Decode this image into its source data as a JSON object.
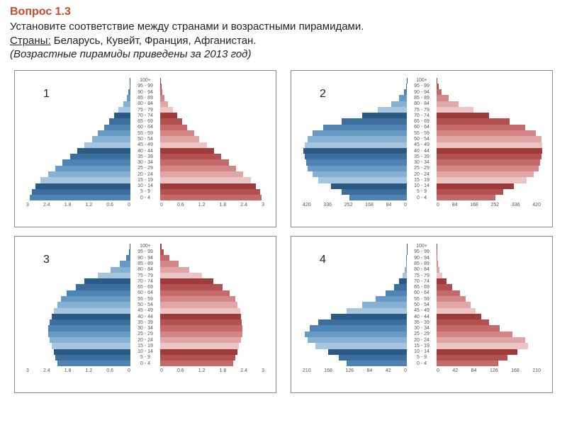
{
  "header": {
    "title": "Вопрос  1.3",
    "line1": "Установите соответствие между странами и возрастными пирамидами.",
    "countries_label": "Страны:",
    "countries": " Беларусь, Кувейт, Франция, Афганистан.",
    "note": "(Возрастные пирамиды приведены за 2013 год)"
  },
  "style": {
    "male_colors": [
      "#2b5a84",
      "#3c6e9e",
      "#4f83b3",
      "#689ac4",
      "#86b1d3",
      "#a6c6e0"
    ],
    "female_colors": [
      "#9e3b3b",
      "#b35050",
      "#c46a6a",
      "#d48686",
      "#e0a6a6",
      "#ecc4c4"
    ],
    "border_color": "#888888",
    "age_labels": [
      "100+",
      "95 - 99",
      "90 - 94",
      "85 - 89",
      "80 - 84",
      "75 - 79",
      "70 - 74",
      "65 - 69",
      "60 - 64",
      "55 - 59",
      "50 - 54",
      "45 - 49",
      "40 - 44",
      "35 - 39",
      "30 - 34",
      "25 - 29",
      "20 - 24",
      "15 - 19",
      "10 - 14",
      "5 - 9",
      "0 - 4"
    ],
    "label_fontsize": 7,
    "axis_fontsize": 7
  },
  "pyramids": [
    {
      "label": "1",
      "xmax": 3,
      "xticks_left": [
        "3",
        "2.4",
        "1.8",
        "1.2",
        "0.6",
        "0"
      ],
      "xticks_right": [
        "0",
        "0.6",
        "1.2",
        "1.8",
        "2.4",
        "3"
      ],
      "male": [
        0.01,
        0.02,
        0.05,
        0.1,
        0.2,
        0.33,
        0.45,
        0.58,
        0.72,
        0.9,
        1.05,
        1.25,
        1.45,
        1.65,
        1.85,
        2.05,
        2.25,
        2.45,
        2.6,
        2.7,
        2.75
      ],
      "female": [
        0.02,
        0.03,
        0.06,
        0.12,
        0.22,
        0.35,
        0.47,
        0.6,
        0.74,
        0.92,
        1.07,
        1.27,
        1.47,
        1.67,
        1.87,
        2.07,
        2.27,
        2.47,
        2.62,
        2.72,
        2.77
      ]
    },
    {
      "label": "2",
      "xmax": 420,
      "xticks_left": [
        "420",
        "336",
        "252",
        "168",
        "84",
        "0"
      ],
      "xticks_right": [
        "0",
        "84",
        "168",
        "252",
        "336",
        "420"
      ],
      "male": [
        1,
        4,
        12,
        30,
        60,
        110,
        170,
        250,
        320,
        360,
        380,
        390,
        395,
        390,
        385,
        380,
        360,
        340,
        290,
        250,
        220
      ],
      "female": [
        2,
        7,
        20,
        45,
        85,
        140,
        200,
        280,
        340,
        380,
        400,
        405,
        405,
        400,
        395,
        390,
        370,
        345,
        295,
        255,
        225
      ]
    },
    {
      "label": "3",
      "xmax": 3,
      "xticks_left": [
        "3",
        "2.4",
        "1.8",
        "1.2",
        "0.6",
        "0"
      ],
      "xticks_right": [
        "0",
        "0.6",
        "1.2",
        "1.8",
        "2.4",
        "3"
      ],
      "male": [
        0.01,
        0.04,
        0.12,
        0.3,
        0.55,
        0.9,
        1.25,
        1.5,
        1.75,
        1.9,
        2.0,
        2.1,
        2.15,
        2.2,
        2.25,
        2.25,
        2.2,
        2.15,
        2.1,
        2.05,
        2.0
      ],
      "female": [
        0.03,
        0.1,
        0.25,
        0.5,
        0.8,
        1.15,
        1.45,
        1.7,
        1.9,
        2.05,
        2.1,
        2.18,
        2.2,
        2.22,
        2.25,
        2.25,
        2.2,
        2.15,
        2.1,
        2.05,
        2.0
      ]
    },
    {
      "label": "4",
      "xmax": 210,
      "xticks_left": [
        "210",
        "168",
        "126",
        "84",
        "42",
        "0"
      ],
      "xticks_right": [
        "0",
        "42",
        "84",
        "126",
        "168",
        "210"
      ],
      "male": [
        0.2,
        0.5,
        1,
        2,
        4,
        8,
        15,
        25,
        40,
        60,
        85,
        115,
        145,
        170,
        185,
        195,
        190,
        175,
        150,
        130,
        115
      ],
      "female": [
        0.3,
        0.7,
        1.5,
        3,
        6,
        11,
        19,
        30,
        45,
        55,
        65,
        75,
        85,
        100,
        120,
        145,
        170,
        175,
        155,
        135,
        118
      ]
    }
  ]
}
